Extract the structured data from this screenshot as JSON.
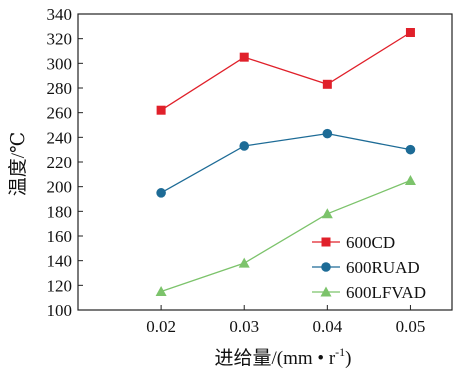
{
  "chart_data": {
    "type": "line",
    "title": "",
    "xlabel": "进给量/(mm • r",
    "xlabel_sup": "-1",
    "xlabel_tail": ")",
    "ylabel": "温度/℃",
    "x": [
      0.02,
      0.03,
      0.04,
      0.05
    ],
    "x_tick_labels": [
      "0.02",
      "0.03",
      "0.04",
      "0.05"
    ],
    "y_ticks": [
      100,
      120,
      140,
      160,
      180,
      200,
      220,
      240,
      260,
      280,
      300,
      320,
      340
    ],
    "ylim": [
      100,
      340
    ],
    "xlim": [
      0.01,
      0.055
    ],
    "grid": false,
    "legend_position": "bottom-right",
    "series": [
      {
        "name": "600CD",
        "values": [
          262,
          305,
          283,
          325
        ],
        "color": "#e0202a",
        "marker": "square"
      },
      {
        "name": "600RUAD",
        "values": [
          195,
          233,
          243,
          230
        ],
        "color": "#1d6b96",
        "marker": "circle"
      },
      {
        "name": "600LFVAD",
        "values": [
          115,
          138,
          178,
          205
        ],
        "color": "#7cc36b",
        "marker": "triangle"
      }
    ]
  }
}
